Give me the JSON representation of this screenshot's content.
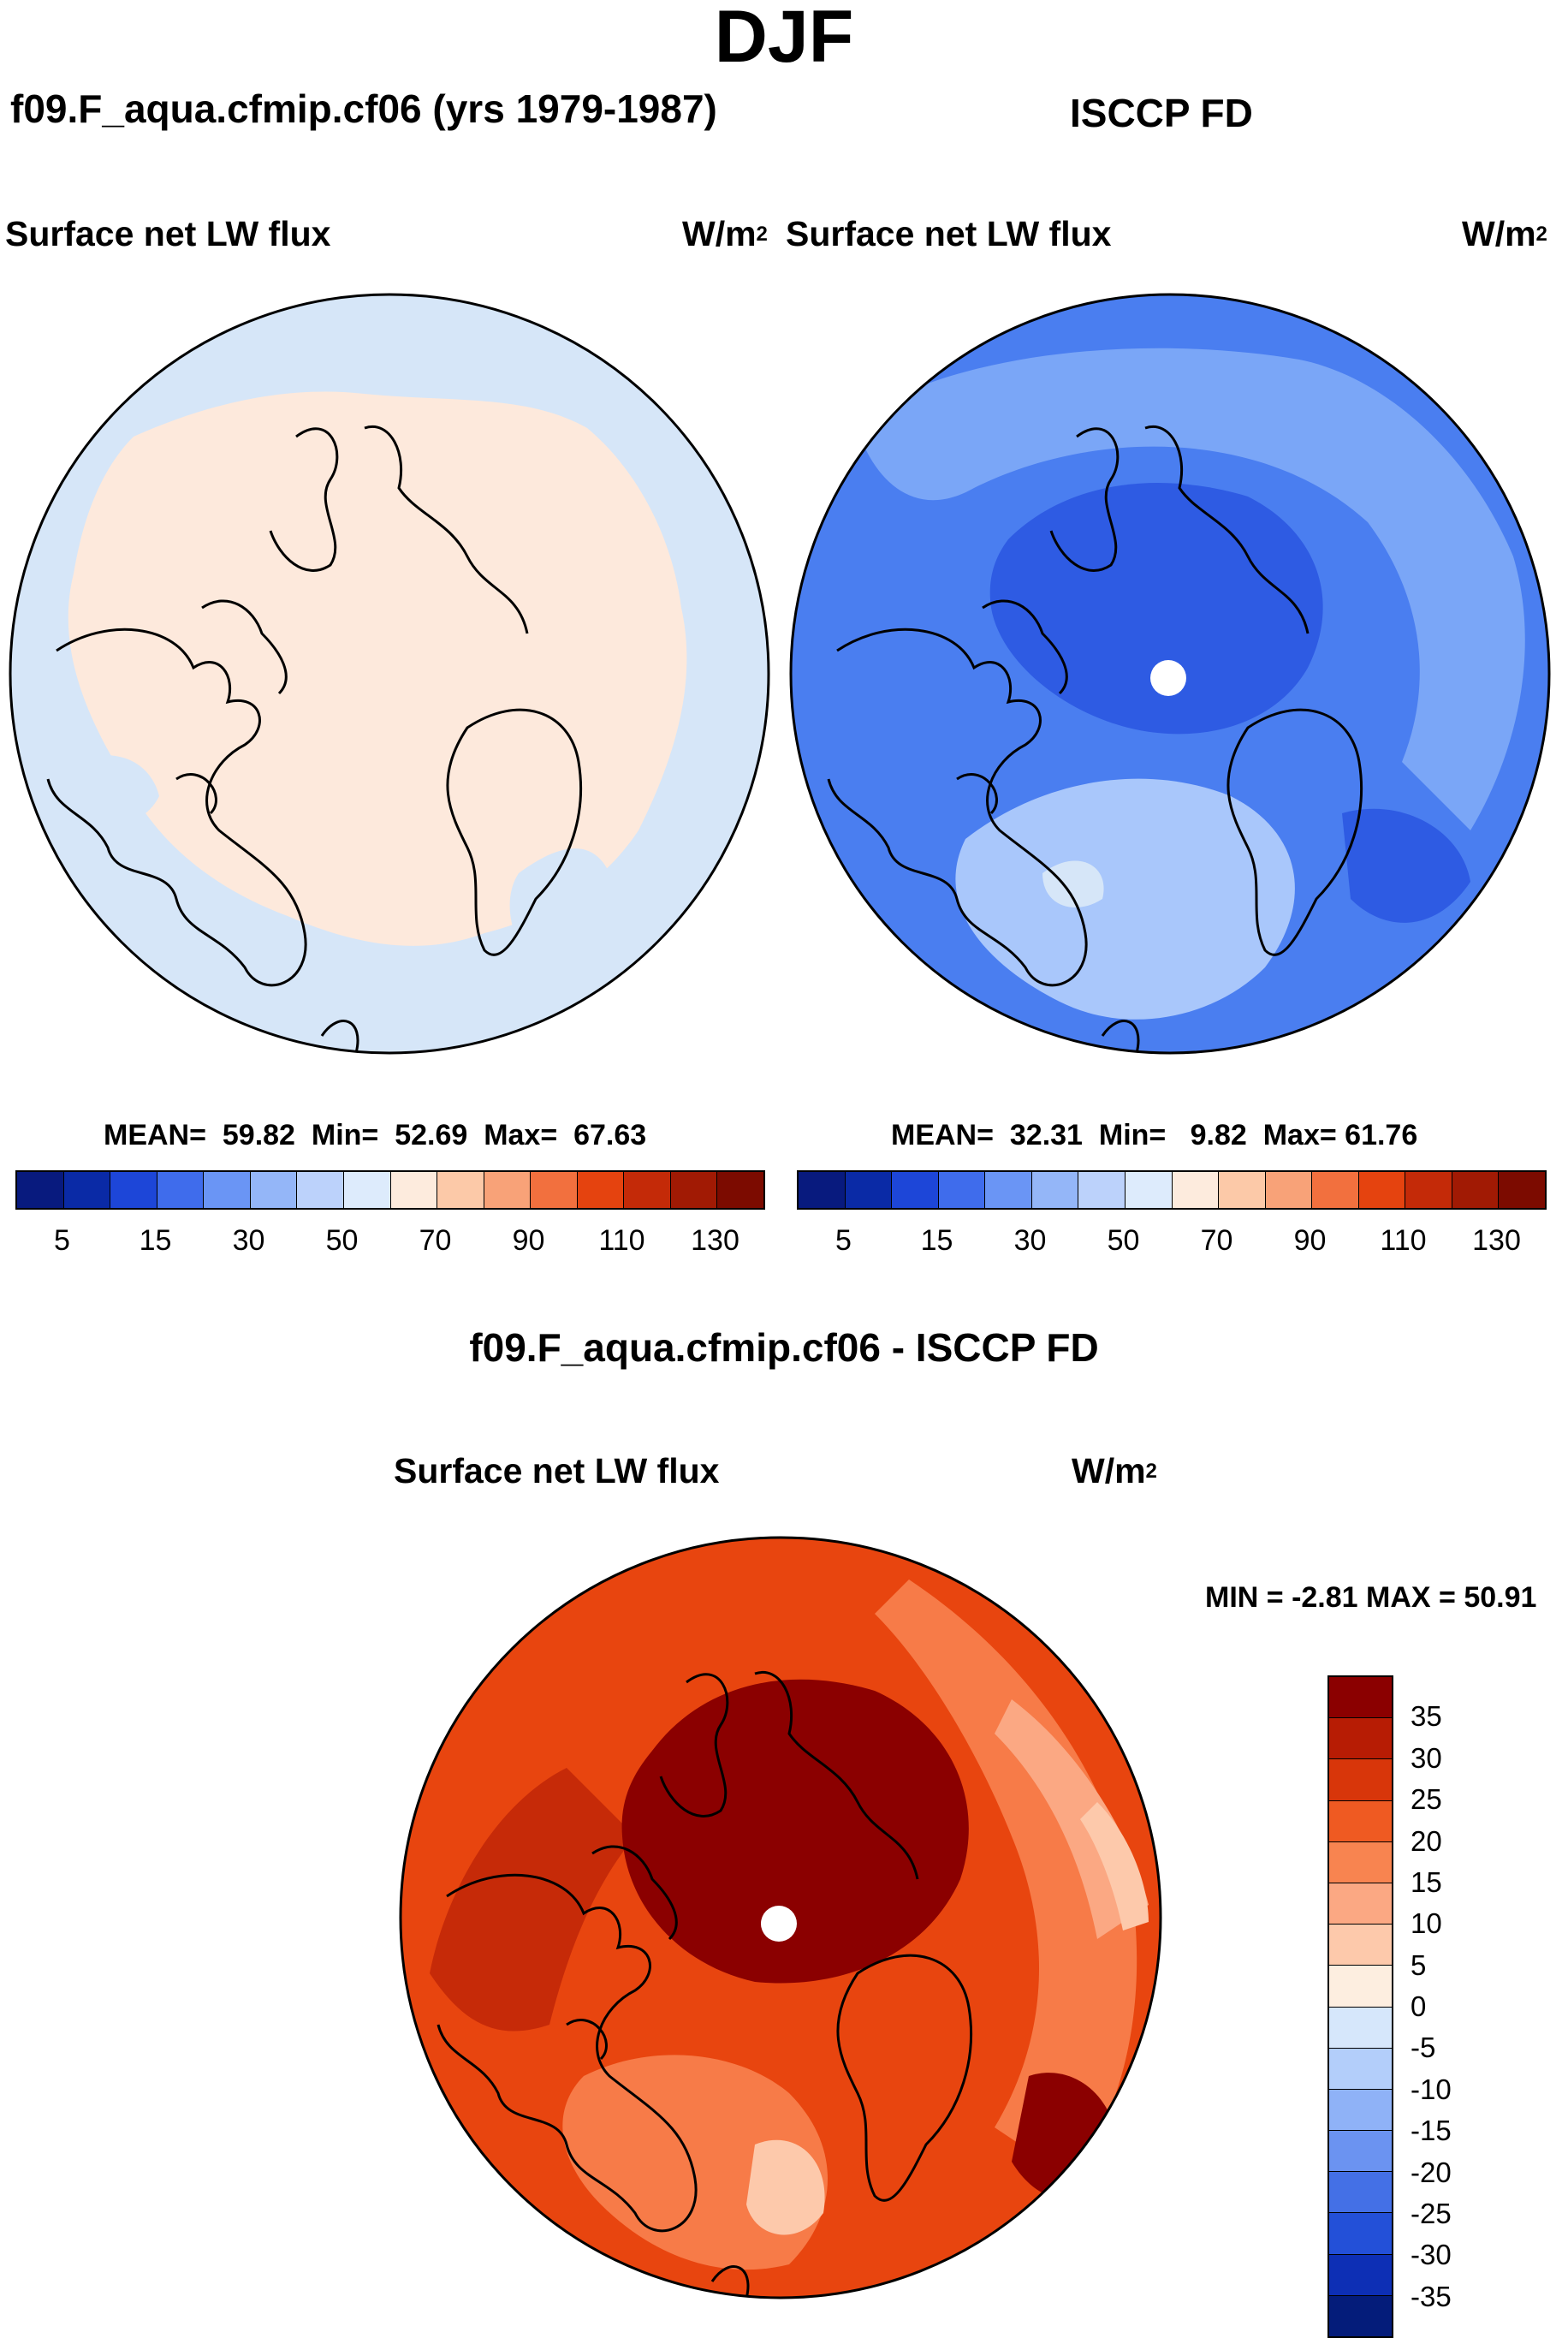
{
  "figure": {
    "title": "DJF",
    "colors": {
      "outline": "#000000",
      "background": "#ffffff",
      "pole_hole": "#ffffff"
    }
  },
  "panels": {
    "model": {
      "header": "f09.F_aqua.cfmip.cf06 (yrs 1979-1987)",
      "field": "Surface net LW flux",
      "units_base": "W/m",
      "units_exp": "2",
      "stats": {
        "mean_label": "MEAN=",
        "mean": "59.82",
        "min_label": "Min=",
        "min": "52.69",
        "max_label": "Max=",
        "max": "67.63"
      },
      "dominant_colors": [
        "#fde9dc",
        "#d6e6f8"
      ]
    },
    "obs": {
      "header": "ISCCP FD",
      "field": "Surface net LW flux",
      "units_base": "W/m",
      "units_exp": "2",
      "stats": {
        "mean_label": "MEAN=",
        "mean": "32.31",
        "min_label": "Min=",
        "min": "9.82",
        "max_label": "Max=",
        "max": "61.76"
      },
      "dominant_colors": [
        "#4a7ef0",
        "#2e5be3",
        "#7aa6f7",
        "#a9c7fb"
      ]
    },
    "diff": {
      "header": "f09.F_aqua.cfmip.cf06 - ISCCP FD",
      "field": "Surface net LW flux",
      "units_base": "W/m",
      "units_exp": "2",
      "stats_text": "MIN =  -2.81 MAX =  50.91",
      "dominant_colors": [
        "#e8450f",
        "#c62a08",
        "#8b0000",
        "#f77b48"
      ]
    }
  },
  "colorbars": {
    "abs": {
      "tick_labels": [
        "5",
        "15",
        "30",
        "50",
        "70",
        "90",
        "110",
        "130"
      ],
      "colors": [
        "#081a7e",
        "#0a2aa6",
        "#1d46d8",
        "#3f6cec",
        "#6a95f5",
        "#94b6f8",
        "#bcd2fb",
        "#ddebfc",
        "#fdebdd",
        "#fcc9a8",
        "#f8a278",
        "#f2703e",
        "#e5430f",
        "#c42a08",
        "#a11a04",
        "#7c0b00"
      ]
    },
    "diff": {
      "tick_labels": [
        "35",
        "30",
        "25",
        "20",
        "15",
        "10",
        "5",
        "0",
        "-5",
        "-10",
        "-15",
        "-20",
        "-25",
        "-30",
        "-35"
      ],
      "colors": [
        "#8b0000",
        "#b71c04",
        "#d8360a",
        "#ef5a22",
        "#f88450",
        "#fba883",
        "#fdc9ab",
        "#fdeee0",
        "#d6e7fb",
        "#b3cefa",
        "#8fb2f7",
        "#6b93f1",
        "#4470e6",
        "#2350d8",
        "#0d2fb5",
        "#041c7a"
      ]
    },
    "chart_data": {
      "type": "heatmap",
      "title": "DJF",
      "series": [
        {
          "name": "f09.F_aqua.cfmip.cf06 (yrs 1979-1987)",
          "mean": 59.82,
          "min": 52.69,
          "max": 67.63
        },
        {
          "name": "ISCCP FD",
          "mean": 32.31,
          "min": 9.82,
          "max": 61.76
        },
        {
          "name": "f09.F_aqua.cfmip.cf06 - ISCCP FD",
          "min": -2.81,
          "max": 50.91
        }
      ],
      "abs_levels": [
        5,
        15,
        30,
        50,
        70,
        90,
        110,
        130
      ],
      "diff_levels": [
        -35,
        -30,
        -25,
        -20,
        -15,
        -10,
        -5,
        0,
        5,
        10,
        15,
        20,
        25,
        30,
        35
      ]
    }
  }
}
